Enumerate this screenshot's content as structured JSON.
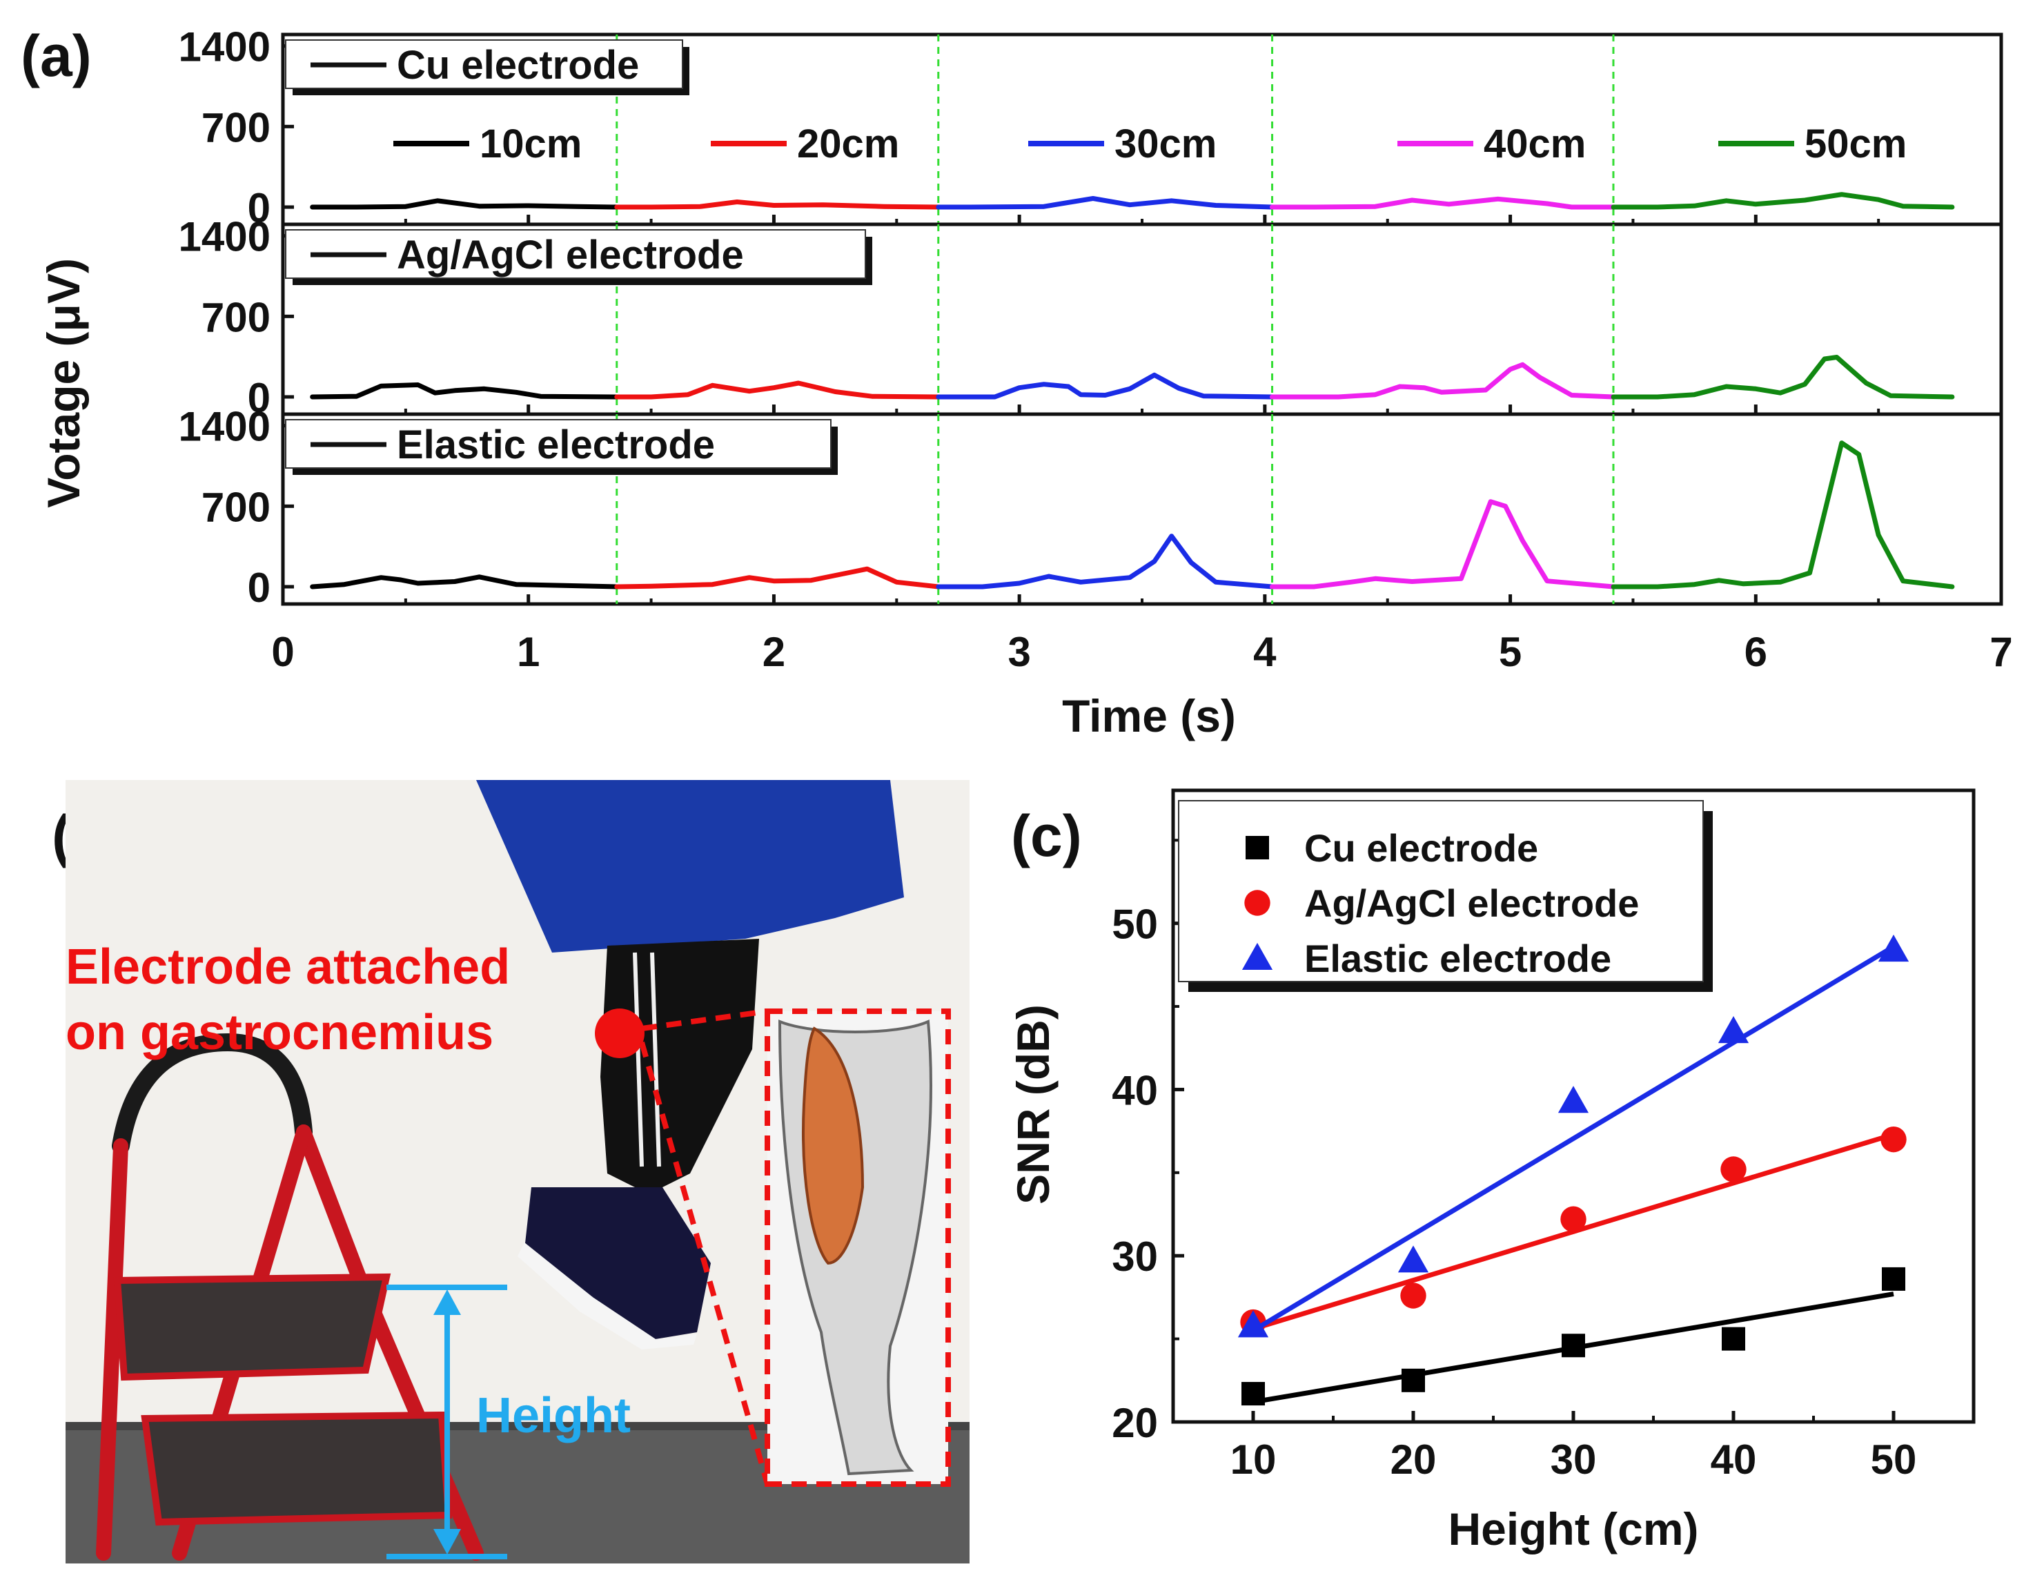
{
  "chart_data": [
    {
      "panel": "(a)",
      "type": "line",
      "xlabel": "Time (s)",
      "ylabel": "Votage (μV)",
      "xlim": [
        0,
        7
      ],
      "xticks": [
        "0",
        "1",
        "2",
        "3",
        "4",
        "5",
        "6",
        "7"
      ],
      "ylim": [
        -150,
        1500
      ],
      "yticks": [
        "0",
        "700",
        "1400"
      ],
      "divider_times": [
        1.36,
        2.67,
        4.03,
        5.42
      ],
      "grid": false,
      "segment_colors": [
        "#000000",
        "#ee1111",
        "#1a2ce6",
        "#ee22ee",
        "#118811"
      ],
      "height_labels": [
        "10cm",
        "20cm",
        "30cm",
        "40cm",
        "50cm"
      ],
      "subplots": [
        {
          "legend": "Cu electrode",
          "points": [
            [
              0.12,
              0
            ],
            [
              0.3,
              0
            ],
            [
              0.5,
              5
            ],
            [
              0.63,
              55
            ],
            [
              0.8,
              8
            ],
            [
              1.0,
              12
            ],
            [
              1.2,
              5
            ],
            [
              1.36,
              0
            ],
            [
              1.5,
              0
            ],
            [
              1.7,
              5
            ],
            [
              1.85,
              45
            ],
            [
              2.0,
              15
            ],
            [
              2.2,
              20
            ],
            [
              2.45,
              5
            ],
            [
              2.67,
              0
            ],
            [
              2.8,
              0
            ],
            [
              3.1,
              5
            ],
            [
              3.3,
              75
            ],
            [
              3.45,
              20
            ],
            [
              3.62,
              55
            ],
            [
              3.8,
              15
            ],
            [
              4.03,
              0
            ],
            [
              4.2,
              0
            ],
            [
              4.45,
              5
            ],
            [
              4.6,
              60
            ],
            [
              4.75,
              25
            ],
            [
              4.95,
              70
            ],
            [
              5.15,
              30
            ],
            [
              5.25,
              0
            ],
            [
              5.42,
              0
            ],
            [
              5.6,
              0
            ],
            [
              5.75,
              10
            ],
            [
              5.88,
              55
            ],
            [
              6.0,
              25
            ],
            [
              6.2,
              60
            ],
            [
              6.35,
              110
            ],
            [
              6.5,
              65
            ],
            [
              6.6,
              8
            ],
            [
              6.8,
              0
            ]
          ]
        },
        {
          "legend": "Ag/AgCl electrode",
          "points": [
            [
              0.12,
              0
            ],
            [
              0.3,
              5
            ],
            [
              0.4,
              95
            ],
            [
              0.55,
              105
            ],
            [
              0.62,
              35
            ],
            [
              0.7,
              55
            ],
            [
              0.82,
              70
            ],
            [
              0.95,
              40
            ],
            [
              1.05,
              5
            ],
            [
              1.36,
              0
            ],
            [
              1.5,
              0
            ],
            [
              1.65,
              20
            ],
            [
              1.75,
              100
            ],
            [
              1.9,
              50
            ],
            [
              2.0,
              80
            ],
            [
              2.1,
              120
            ],
            [
              2.25,
              45
            ],
            [
              2.4,
              5
            ],
            [
              2.67,
              0
            ],
            [
              2.9,
              0
            ],
            [
              3.0,
              80
            ],
            [
              3.1,
              110
            ],
            [
              3.2,
              90
            ],
            [
              3.25,
              20
            ],
            [
              3.35,
              15
            ],
            [
              3.45,
              70
            ],
            [
              3.55,
              190
            ],
            [
              3.65,
              75
            ],
            [
              3.75,
              8
            ],
            [
              4.03,
              0
            ],
            [
              4.3,
              0
            ],
            [
              4.45,
              20
            ],
            [
              4.55,
              90
            ],
            [
              4.65,
              80
            ],
            [
              4.72,
              40
            ],
            [
              4.9,
              60
            ],
            [
              5.0,
              240
            ],
            [
              5.05,
              280
            ],
            [
              5.12,
              170
            ],
            [
              5.25,
              15
            ],
            [
              5.42,
              0
            ],
            [
              5.6,
              0
            ],
            [
              5.75,
              20
            ],
            [
              5.88,
              90
            ],
            [
              6.0,
              70
            ],
            [
              6.1,
              35
            ],
            [
              6.2,
              110
            ],
            [
              6.28,
              330
            ],
            [
              6.33,
              345
            ],
            [
              6.45,
              120
            ],
            [
              6.55,
              10
            ],
            [
              6.8,
              0
            ]
          ]
        },
        {
          "legend": "Elastic  electrode",
          "points": [
            [
              0.12,
              0
            ],
            [
              0.25,
              20
            ],
            [
              0.4,
              80
            ],
            [
              0.48,
              60
            ],
            [
              0.55,
              30
            ],
            [
              0.7,
              45
            ],
            [
              0.8,
              85
            ],
            [
              0.95,
              20
            ],
            [
              1.36,
              0
            ],
            [
              1.5,
              5
            ],
            [
              1.75,
              20
            ],
            [
              1.9,
              80
            ],
            [
              2.0,
              50
            ],
            [
              2.15,
              55
            ],
            [
              2.3,
              120
            ],
            [
              2.38,
              155
            ],
            [
              2.5,
              40
            ],
            [
              2.67,
              0
            ],
            [
              2.85,
              0
            ],
            [
              3.0,
              30
            ],
            [
              3.12,
              90
            ],
            [
              3.25,
              40
            ],
            [
              3.45,
              80
            ],
            [
              3.55,
              220
            ],
            [
              3.62,
              440
            ],
            [
              3.7,
              210
            ],
            [
              3.8,
              40
            ],
            [
              4.03,
              0
            ],
            [
              4.2,
              0
            ],
            [
              4.35,
              40
            ],
            [
              4.45,
              70
            ],
            [
              4.6,
              45
            ],
            [
              4.8,
              70
            ],
            [
              4.92,
              740
            ],
            [
              4.98,
              700
            ],
            [
              5.05,
              400
            ],
            [
              5.15,
              50
            ],
            [
              5.42,
              0
            ],
            [
              5.6,
              0
            ],
            [
              5.75,
              20
            ],
            [
              5.85,
              55
            ],
            [
              5.95,
              25
            ],
            [
              6.1,
              40
            ],
            [
              6.22,
              120
            ],
            [
              6.35,
              1250
            ],
            [
              6.42,
              1150
            ],
            [
              6.5,
              450
            ],
            [
              6.6,
              50
            ],
            [
              6.8,
              0
            ]
          ]
        }
      ]
    },
    {
      "panel": "(c)",
      "type": "scatter",
      "xlabel": "Height (cm)",
      "ylabel": "SNR (dB)",
      "xlim": [
        5,
        55
      ],
      "ylim": [
        20,
        58
      ],
      "xticks": [
        "10",
        "20",
        "30",
        "40",
        "50"
      ],
      "yticks": [
        "20",
        "30",
        "40",
        "50"
      ],
      "legend_position": "top-left",
      "grid": false,
      "series": [
        {
          "name": "Cu electrode",
          "color": "#000000",
          "marker": "square",
          "x": [
            10,
            20,
            30,
            40,
            50
          ],
          "y": [
            21.7,
            22.5,
            24.6,
            25.0,
            28.6
          ],
          "fit": [
            [
              10,
              21.2
            ],
            [
              50,
              27.7
            ]
          ]
        },
        {
          "name": "Ag/AgCl electrode",
          "color": "#ee1111",
          "marker": "circle",
          "x": [
            10,
            20,
            30,
            40,
            50
          ],
          "y": [
            26.0,
            27.6,
            32.2,
            35.2,
            37.0
          ],
          "fit": [
            [
              10,
              25.6
            ],
            [
              50,
              37.3
            ]
          ]
        },
        {
          "name": "Elastic electrode",
          "color": "#1a2ce6",
          "marker": "triangle",
          "x": [
            10,
            20,
            30,
            40,
            50
          ],
          "y": [
            25.8,
            29.7,
            39.3,
            43.5,
            48.4
          ],
          "fit": [
            [
              10,
              25.5
            ],
            [
              50,
              48.6
            ]
          ]
        }
      ]
    }
  ],
  "panel_b": {
    "label": "(b)",
    "annotation_line1": "Electrode attached",
    "annotation_line2": "on gastrocnemius",
    "height_label": "Height",
    "annotation_color": "#ee1111",
    "height_color": "#22aaee",
    "photo_description": "photo-step-stool-leg-calf"
  }
}
